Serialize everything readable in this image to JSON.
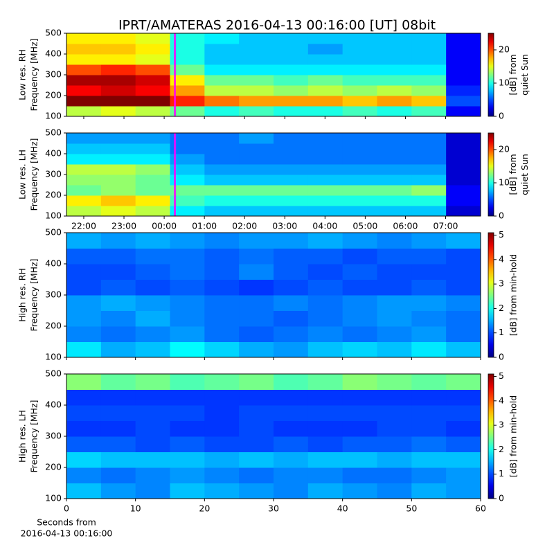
{
  "chart_data": [
    {
      "type": "heatmap",
      "title": "IPRT/AMATERAS 2016-04-13 00:16:00 [UT]   08bit",
      "ylabel": [
        "Low res. RH",
        "Frequency [MHz]"
      ],
      "clabel": [
        "[dB] from",
        "quiet Sun"
      ],
      "xlim": [
        21.57,
        31.87
      ],
      "xticks": [
        22,
        23,
        24,
        25,
        26,
        27,
        28,
        29,
        30,
        31
      ],
      "xticklabels": false,
      "ylim": [
        100,
        500
      ],
      "yticks": [
        100,
        200,
        300,
        400,
        500
      ],
      "clim": [
        0,
        25
      ],
      "cticks": [
        0,
        10,
        20
      ],
      "marker": {
        "x": 24.267,
        "color": "#ff00ff"
      },
      "z": [
        [
          14,
          15,
          14,
          12,
          10,
          11,
          10,
          10,
          11,
          10,
          11,
          3
        ],
        [
          25,
          25,
          25,
          21,
          19,
          18,
          18,
          18,
          17,
          18,
          17,
          5
        ],
        [
          22,
          23,
          22,
          18,
          14,
          14,
          13,
          14,
          13,
          14,
          13,
          4
        ],
        [
          24,
          24,
          23,
          16,
          12,
          12,
          11,
          12,
          11,
          11,
          11,
          3
        ],
        [
          20,
          21,
          20,
          12,
          9,
          9,
          9,
          9,
          9,
          9,
          9,
          3
        ],
        [
          16,
          16,
          15,
          10,
          8,
          8,
          8,
          8,
          8,
          8,
          8,
          3
        ],
        [
          17,
          17,
          16,
          10,
          8,
          8,
          8,
          7,
          8,
          8,
          8,
          3
        ],
        [
          16,
          16,
          15,
          10,
          9,
          8,
          8,
          8,
          8,
          8,
          8,
          3
        ]
      ]
    },
    {
      "type": "heatmap",
      "ylabel": [
        "Low res. LH",
        "Frequency [MHz]"
      ],
      "clabel": [
        "[dB] from",
        "quiet Sun"
      ],
      "xlim": [
        21.57,
        31.87
      ],
      "xticks": [
        {
          "value": 22,
          "label": "22:00"
        },
        {
          "value": 23,
          "label": "23:00"
        },
        {
          "value": 24,
          "label": "00:00"
        },
        {
          "value": 25,
          "label": "01:00"
        },
        {
          "value": 26,
          "label": "02:00"
        },
        {
          "value": 27,
          "label": "03:00"
        },
        {
          "value": 28,
          "label": "04:00"
        },
        {
          "value": 29,
          "label": "05:00"
        },
        {
          "value": 30,
          "label": "06:00"
        },
        {
          "value": 31,
          "label": "07:00"
        }
      ],
      "xticklabels": true,
      "ylim": [
        100,
        500
      ],
      "yticks": [
        100,
        200,
        300,
        400,
        500
      ],
      "clim": [
        0,
        25
      ],
      "cticks": [
        0,
        10,
        20
      ],
      "marker": {
        "x": 24.267,
        "color": "#ff00ff"
      },
      "z": [
        [
          14,
          15,
          14,
          9,
          8,
          8,
          8,
          8,
          8,
          8,
          8,
          2
        ],
        [
          16,
          17,
          16,
          11,
          10,
          10,
          10,
          10,
          10,
          10,
          10,
          3
        ],
        [
          12,
          13,
          12,
          12,
          12,
          12,
          12,
          12,
          12,
          12,
          13,
          3
        ],
        [
          13,
          13,
          12,
          9,
          8,
          8,
          8,
          8,
          8,
          8,
          8,
          2
        ],
        [
          14,
          14,
          13,
          8,
          7,
          7,
          7,
          7,
          7,
          7,
          7,
          2
        ],
        [
          9,
          9,
          9,
          7,
          6,
          6,
          6,
          6,
          6,
          6,
          6,
          2
        ],
        [
          8,
          8,
          8,
          6,
          6,
          6,
          6,
          6,
          6,
          6,
          6,
          2
        ],
        [
          7,
          7,
          7,
          6,
          6,
          7,
          6,
          6,
          6,
          6,
          6,
          2
        ]
      ]
    },
    {
      "type": "heatmap",
      "ylabel": [
        "High res. RH",
        "Frequency [MHz]"
      ],
      "clabel": [
        "[dB] from min-hold"
      ],
      "xlim": [
        0,
        60
      ],
      "xticks": [
        0,
        10,
        20,
        30,
        40,
        50,
        60
      ],
      "xticklabels": false,
      "ylim": [
        100,
        500
      ],
      "yticks": [
        100,
        200,
        300,
        400,
        500
      ],
      "clim": [
        0,
        5.1
      ],
      "cticks": [
        0,
        1,
        2,
        3,
        4,
        5
      ],
      "z": [
        [
          1.8,
          1.5,
          1.6,
          1.9,
          1.7,
          1.5,
          1.4,
          1.6,
          1.7,
          1.6,
          1.8,
          1.6
        ],
        [
          1.3,
          1.2,
          1.3,
          1.4,
          1.2,
          1.1,
          1.2,
          1.3,
          1.2,
          1.3,
          1.4,
          1.2
        ],
        [
          1.4,
          1.3,
          1.5,
          1.3,
          1.2,
          1.2,
          1.1,
          1.2,
          1.3,
          1.4,
          1.3,
          1.2
        ],
        [
          1.4,
          1.5,
          1.4,
          1.3,
          1.2,
          1.2,
          1.3,
          1.2,
          1.3,
          1.4,
          1.4,
          1.3
        ],
        [
          1.0,
          1.1,
          1.0,
          1.1,
          1.0,
          0.9,
          1.0,
          1.1,
          1.0,
          1.0,
          1.1,
          1.0
        ],
        [
          1.0,
          1.0,
          1.1,
          1.2,
          1.1,
          1.3,
          1.1,
          1.0,
          1.1,
          1.0,
          1.0,
          1.0
        ],
        [
          1.1,
          1.1,
          1.2,
          1.2,
          1.1,
          1.2,
          1.1,
          1.1,
          1.0,
          1.1,
          1.1,
          1.0
        ],
        [
          1.5,
          1.4,
          1.5,
          1.4,
          1.3,
          1.4,
          1.4,
          1.5,
          1.4,
          1.3,
          1.4,
          1.5
        ]
      ]
    },
    {
      "type": "heatmap",
      "ylabel": [
        "High res. LH",
        "Frequency [MHz]"
      ],
      "clabel": [
        "[dB] from min-hold"
      ],
      "xlabel": [
        "Seconds from",
        "2016-04-13 00:16:00"
      ],
      "xlim": [
        0,
        60
      ],
      "xticks": [
        0,
        10,
        20,
        30,
        40,
        50,
        60
      ],
      "xticklabels": true,
      "ylim": [
        100,
        500
      ],
      "yticks": [
        100,
        200,
        300,
        400,
        500
      ],
      "clim": [
        0,
        5.1
      ],
      "cticks": [
        0,
        1,
        2,
        3,
        4,
        5
      ],
      "z": [
        [
          1.6,
          1.4,
          1.3,
          1.6,
          1.5,
          1.4,
          1.3,
          1.5,
          1.4,
          1.3,
          1.5,
          1.4
        ],
        [
          1.3,
          1.2,
          1.3,
          1.4,
          1.3,
          1.2,
          1.3,
          1.3,
          1.2,
          1.2,
          1.3,
          1.4
        ],
        [
          1.7,
          1.6,
          1.6,
          1.6,
          1.5,
          1.6,
          1.5,
          1.6,
          1.6,
          1.5,
          1.6,
          1.6
        ],
        [
          1.1,
          1.1,
          1.0,
          1.1,
          1.0,
          1.0,
          1.1,
          1.0,
          1.1,
          1.1,
          1.2,
          1.1
        ],
        [
          0.9,
          0.9,
          1.0,
          0.9,
          0.9,
          1.0,
          0.9,
          0.9,
          0.9,
          1.0,
          1.0,
          0.9
        ],
        [
          1.0,
          1.0,
          1.0,
          1.0,
          0.9,
          1.0,
          1.0,
          1.0,
          1.0,
          1.0,
          1.0,
          1.0
        ],
        [
          0.9,
          0.9,
          0.9,
          0.9,
          0.9,
          0.9,
          0.9,
          0.9,
          0.9,
          0.9,
          0.9,
          0.9
        ],
        [
          2.6,
          2.4,
          2.5,
          2.3,
          2.4,
          2.5,
          2.3,
          2.4,
          2.6,
          2.5,
          2.4,
          2.5
        ]
      ]
    }
  ]
}
